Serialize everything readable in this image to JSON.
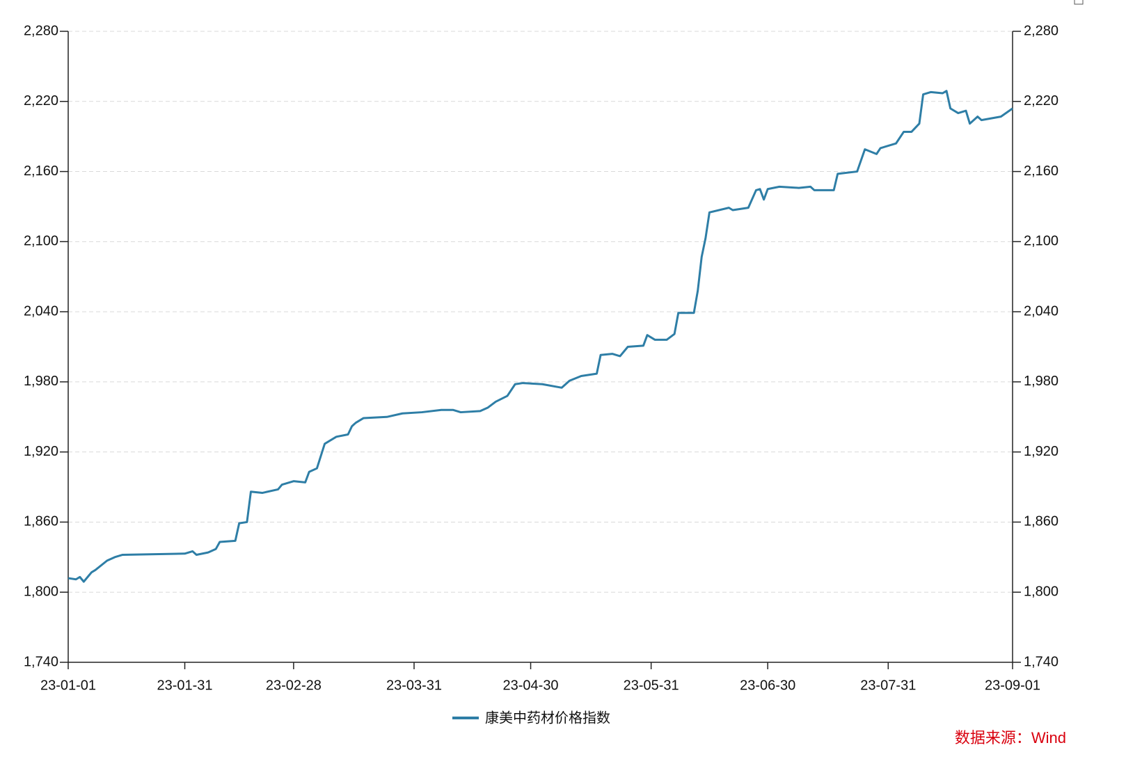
{
  "chart_data": {
    "type": "line",
    "x": [
      "23-01-01",
      "23-01-03",
      "23-01-04",
      "23-01-05",
      "23-01-07",
      "23-01-08",
      "23-01-11",
      "23-01-13",
      "23-01-15",
      "23-01-31",
      "23-02-02",
      "23-02-03",
      "23-02-06",
      "23-02-08",
      "23-02-09",
      "23-02-13",
      "23-02-14",
      "23-02-16",
      "23-02-17",
      "23-02-20",
      "23-02-24",
      "23-02-25",
      "23-02-28",
      "23-03-03",
      "23-03-04",
      "23-03-06",
      "23-03-08",
      "23-03-11",
      "23-03-14",
      "23-03-15",
      "23-03-16",
      "23-03-18",
      "23-03-24",
      "23-03-28",
      "23-04-02",
      "23-04-07",
      "23-04-10",
      "23-04-12",
      "23-04-17",
      "23-04-19",
      "23-04-21",
      "23-04-24",
      "23-04-26",
      "23-04-28",
      "23-05-03",
      "23-05-08",
      "23-05-10",
      "23-05-13",
      "23-05-17",
      "23-05-18",
      "23-05-21",
      "23-05-23",
      "23-05-25",
      "23-05-29",
      "23-05-30",
      "23-06-01",
      "23-06-04",
      "23-06-06",
      "23-06-07",
      "23-06-11",
      "23-06-12",
      "23-06-13",
      "23-06-14",
      "23-06-15",
      "23-06-20",
      "23-06-21",
      "23-06-25",
      "23-06-27",
      "23-06-28",
      "23-06-29",
      "23-06-30",
      "23-07-03",
      "23-07-08",
      "23-07-11",
      "23-07-12",
      "23-07-17",
      "23-07-18",
      "23-07-23",
      "23-07-25",
      "23-07-28",
      "23-07-29",
      "23-08-02",
      "23-08-04",
      "23-08-06",
      "23-08-08",
      "23-08-09",
      "23-08-11",
      "23-08-14",
      "23-08-15",
      "23-08-16",
      "23-08-18",
      "23-08-20",
      "23-08-21",
      "23-08-23",
      "23-08-24",
      "23-08-29",
      "23-09-01"
    ],
    "series": [
      {
        "name": "康美中药材价格指数",
        "color": "#2e7ea6",
        "values": [
          1812,
          1811,
          1813,
          1809,
          1817,
          1819,
          1827,
          1830,
          1832,
          1833,
          1835,
          1832,
          1834,
          1837,
          1843,
          1844,
          1859,
          1860,
          1886,
          1885,
          1888,
          1892,
          1895,
          1894,
          1903,
          1906,
          1927,
          1933,
          1935,
          1942,
          1945,
          1949,
          1950,
          1953,
          1954,
          1956,
          1956,
          1954,
          1955,
          1958,
          1963,
          1968,
          1978,
          1979,
          1978,
          1975,
          1981,
          1985,
          1987,
          2003,
          2004,
          2002,
          2010,
          2011,
          2020,
          2016,
          2016,
          2021,
          2039,
          2039,
          2058,
          2087,
          2103,
          2125,
          2129,
          2127,
          2129,
          2144,
          2145,
          2136,
          2145,
          2147,
          2146,
          2147,
          2144,
          2144,
          2158,
          2160,
          2179,
          2175,
          2180,
          2184,
          2194,
          2194,
          2201,
          2226,
          2228,
          2227,
          2229,
          2214,
          2210,
          2212,
          2201,
          2207,
          2204,
          2207,
          2214
        ]
      }
    ],
    "xlim": [
      "23-01-01",
      "23-09-01"
    ],
    "xticks": [
      "23-01-01",
      "23-01-31",
      "23-02-28",
      "23-03-31",
      "23-04-30",
      "23-05-31",
      "23-06-30",
      "23-07-31",
      "23-09-01"
    ],
    "ylim": [
      1740,
      2280
    ],
    "yticks": [
      {
        "value": 1740,
        "label": "1,740"
      },
      {
        "value": 1800,
        "label": "1,800"
      },
      {
        "value": 1860,
        "label": "1,860"
      },
      {
        "value": 1920,
        "label": "1,920"
      },
      {
        "value": 1980,
        "label": "1,980"
      },
      {
        "value": 2040,
        "label": "2,040"
      },
      {
        "value": 2100,
        "label": "2,100"
      },
      {
        "value": 2160,
        "label": "2,160"
      },
      {
        "value": 2220,
        "label": "2,220"
      },
      {
        "value": 2280,
        "label": "2,280"
      }
    ],
    "y2lim": [
      1740,
      2280
    ],
    "y2ticks": [
      {
        "value": 1740,
        "label": "1,740"
      },
      {
        "value": 1800,
        "label": "1,800"
      },
      {
        "value": 1860,
        "label": "1,860"
      },
      {
        "value": 1920,
        "label": "1,920"
      },
      {
        "value": 1980,
        "label": "1,980"
      },
      {
        "value": 2040,
        "label": "2,040"
      },
      {
        "value": 2100,
        "label": "2,100"
      },
      {
        "value": 2160,
        "label": "2,160"
      },
      {
        "value": 2220,
        "label": "2,220"
      },
      {
        "value": 2280,
        "label": "2,280"
      }
    ],
    "grid": true,
    "legend": "bottom",
    "source": "数据来源：Wind"
  }
}
